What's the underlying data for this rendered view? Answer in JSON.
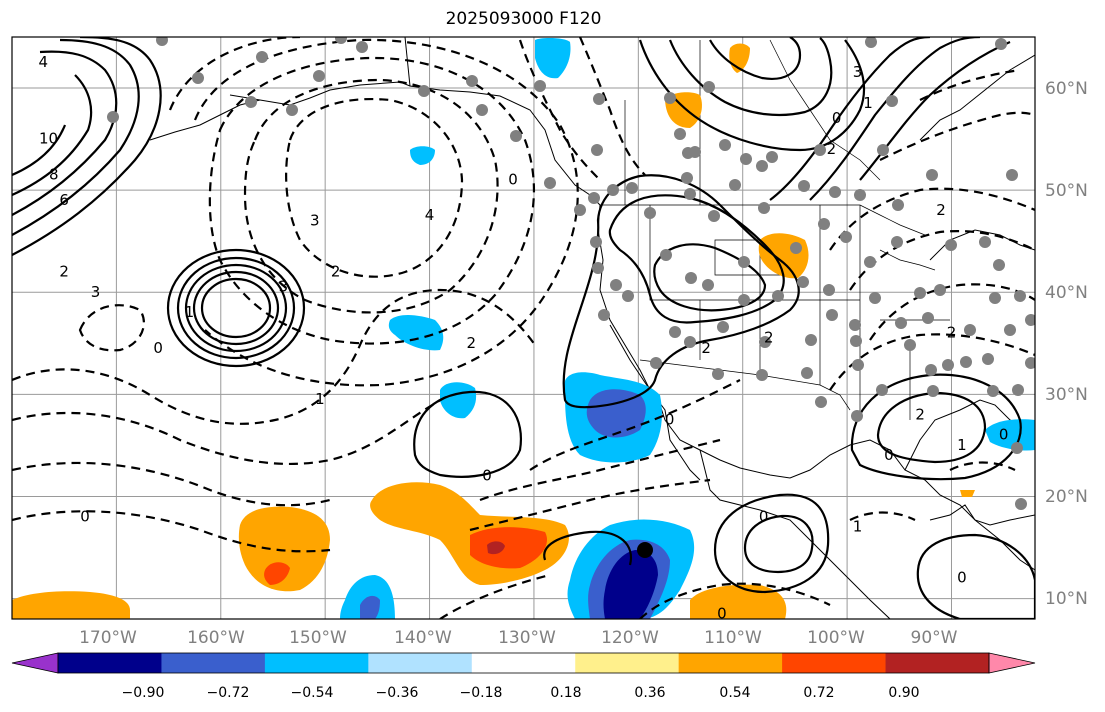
{
  "title": "2025093000 F120",
  "map": {
    "lon_ticks": [
      "170°W",
      "160°W",
      "150°W",
      "140°W",
      "130°W",
      "120°W",
      "110°W",
      "100°W",
      "90°W"
    ],
    "lat_ticks": [
      "60°N",
      "50°N",
      "40°N",
      "30°N",
      "20°N",
      "10°N"
    ],
    "lon_range": [
      -180,
      -82
    ],
    "lat_range": [
      8,
      65
    ]
  },
  "colorbar": {
    "levels": [
      "−0.90",
      "−0.72",
      "−0.54",
      "−0.36",
      "−0.18",
      "0.18",
      "0.36",
      "0.54",
      "0.72",
      "0.90"
    ],
    "colors": [
      "#9932cc",
      "#00008b",
      "#3a5fcd",
      "#00bfff",
      "#b0e2ff",
      "#ffffff",
      "#fff08c",
      "#ffa500",
      "#ff4500",
      "#b22222",
      "#ff88aa"
    ]
  },
  "contour_labels": [
    {
      "text": "4",
      "lon": -177,
      "lat": 62.5
    },
    {
      "text": "10",
      "lon": -176.5,
      "lat": 55
    },
    {
      "text": "8",
      "lon": -176,
      "lat": 51.5
    },
    {
      "text": "6",
      "lon": -175,
      "lat": 49
    },
    {
      "text": "2",
      "lon": -175,
      "lat": 42
    },
    {
      "text": "3",
      "lon": -172,
      "lat": 40
    },
    {
      "text": "0",
      "lon": -166,
      "lat": 34.5
    },
    {
      "text": "1",
      "lon": -163,
      "lat": 38
    },
    {
      "text": "3",
      "lon": -154,
      "lat": 40.5
    },
    {
      "text": "3",
      "lon": -151,
      "lat": 47
    },
    {
      "text": "2",
      "lon": -149,
      "lat": 42
    },
    {
      "text": "4",
      "lon": -140,
      "lat": 47.5
    },
    {
      "text": "2",
      "lon": -136,
      "lat": 35
    },
    {
      "text": "1",
      "lon": -150.5,
      "lat": 29.5
    },
    {
      "text": "0",
      "lon": -132,
      "lat": 51
    },
    {
      "text": "0",
      "lon": -134.5,
      "lat": 22
    },
    {
      "text": "0",
      "lon": -117,
      "lat": 27.5
    },
    {
      "text": "0",
      "lon": -173,
      "lat": 18
    },
    {
      "text": "2",
      "lon": -113.5,
      "lat": 34.5
    },
    {
      "text": "2",
      "lon": -107.5,
      "lat": 35.5
    },
    {
      "text": "2",
      "lon": -101.5,
      "lat": 54
    },
    {
      "text": "1",
      "lon": -98,
      "lat": 58.5
    },
    {
      "text": "0",
      "lon": -101,
      "lat": 57
    },
    {
      "text": "3",
      "lon": -99,
      "lat": 61.5
    },
    {
      "text": "2",
      "lon": -91,
      "lat": 48
    },
    {
      "text": "2",
      "lon": -90,
      "lat": 36
    },
    {
      "text": "2",
      "lon": -93,
      "lat": 28
    },
    {
      "text": "1",
      "lon": -89,
      "lat": 25
    },
    {
      "text": "0",
      "lon": -85,
      "lat": 26
    },
    {
      "text": "0",
      "lon": -96,
      "lat": 24
    },
    {
      "text": "1",
      "lon": -99,
      "lat": 17
    },
    {
      "text": "0",
      "lon": -108,
      "lat": 18
    },
    {
      "text": "0",
      "lon": -112,
      "lat": 8.5
    },
    {
      "text": "0",
      "lon": -89,
      "lat": 12
    }
  ]
}
